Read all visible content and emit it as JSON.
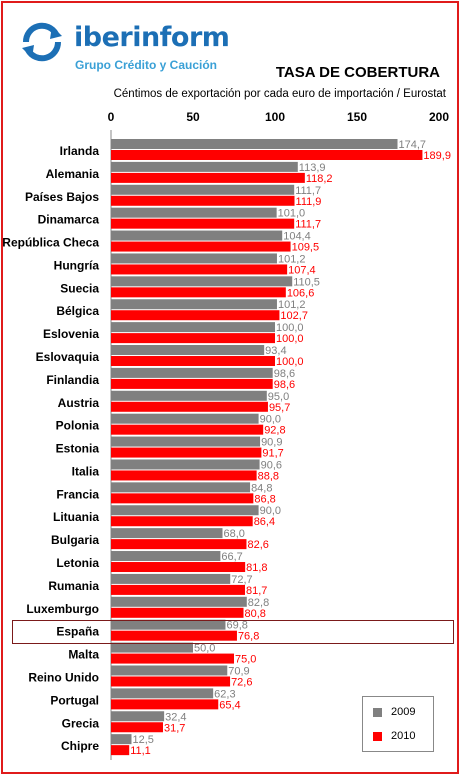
{
  "brand": {
    "name": "iberinform",
    "tagline": "Grupo Crédito y Caución",
    "logo_icon": "circular-arrows-logo-icon"
  },
  "colors": {
    "series_2009": "#808080",
    "series_2010": "#ff0000",
    "frame": "#e01b1b",
    "brand": "#1c6fb5",
    "highlight": "#7b1a1a"
  },
  "chart_data": {
    "type": "bar",
    "orientation": "horizontal",
    "title": "TASA DE COBERTURA",
    "subtitle": "Céntimos de exportación por cada euro de importación / Eurostat",
    "xlim": [
      0,
      200
    ],
    "xticks": [
      "0",
      "50",
      "100",
      "150",
      "200"
    ],
    "axis_position": "top",
    "grid": false,
    "legend_position": "bottom-right",
    "highlighted_category": "España",
    "categories": [
      "Irlanda",
      "Alemania",
      "Países Bajos",
      "Dinamarca",
      "República Checa",
      "Hungría",
      "Suecia",
      "Bélgica",
      "Eslovenia",
      "Eslovaquia",
      "Finlandia",
      "Austria",
      "Polonia",
      "Estonia",
      "Italia",
      "Francia",
      "Lituania",
      "Bulgaria",
      "Letonia",
      "Rumania",
      "Luxemburgo",
      "España",
      "Malta",
      "Reino Unido",
      "Portugal",
      "Grecia",
      "Chipre"
    ],
    "series": [
      {
        "name": "2009",
        "values": [
          174.7,
          113.9,
          111.7,
          101.0,
          104.4,
          101.2,
          110.5,
          101.2,
          100.0,
          93.4,
          98.6,
          95.0,
          90.0,
          90.9,
          90.6,
          84.8,
          90.0,
          68.0,
          66.7,
          72.7,
          82.8,
          69.8,
          50.0,
          70.9,
          62.3,
          32.4,
          12.5
        ],
        "labels": [
          "174,7",
          "113,9",
          "111,7",
          "101,0",
          "104,4",
          "101,2",
          "110,5",
          "101,2",
          "100,0",
          "93,4",
          "98,6",
          "95,0",
          "90,0",
          "90,9",
          "90,6",
          "84,8",
          "90,0",
          "68,0",
          "66,7",
          "72,7",
          "82,8",
          "69,8",
          "50,0",
          "70,9",
          "62,3",
          "32,4",
          "12,5"
        ]
      },
      {
        "name": "2010",
        "values": [
          189.9,
          118.2,
          111.9,
          111.7,
          109.5,
          107.4,
          106.6,
          102.7,
          100.0,
          100.0,
          98.6,
          95.7,
          92.8,
          91.7,
          88.8,
          86.8,
          86.4,
          82.6,
          81.8,
          81.7,
          80.8,
          76.8,
          75.0,
          72.6,
          65.4,
          31.7,
          11.1
        ],
        "labels": [
          "189,9",
          "118,2",
          "111,9",
          "111,7",
          "109,5",
          "107,4",
          "106,6",
          "102,7",
          "100,0",
          "100,0",
          "98,6",
          "95,7",
          "92,8",
          "91,7",
          "88,8",
          "86,8",
          "86,4",
          "82,6",
          "81,8",
          "81,7",
          "80,8",
          "76,8",
          "75,0",
          "72,6",
          "65,4",
          "31,7",
          "11,1"
        ]
      }
    ]
  }
}
